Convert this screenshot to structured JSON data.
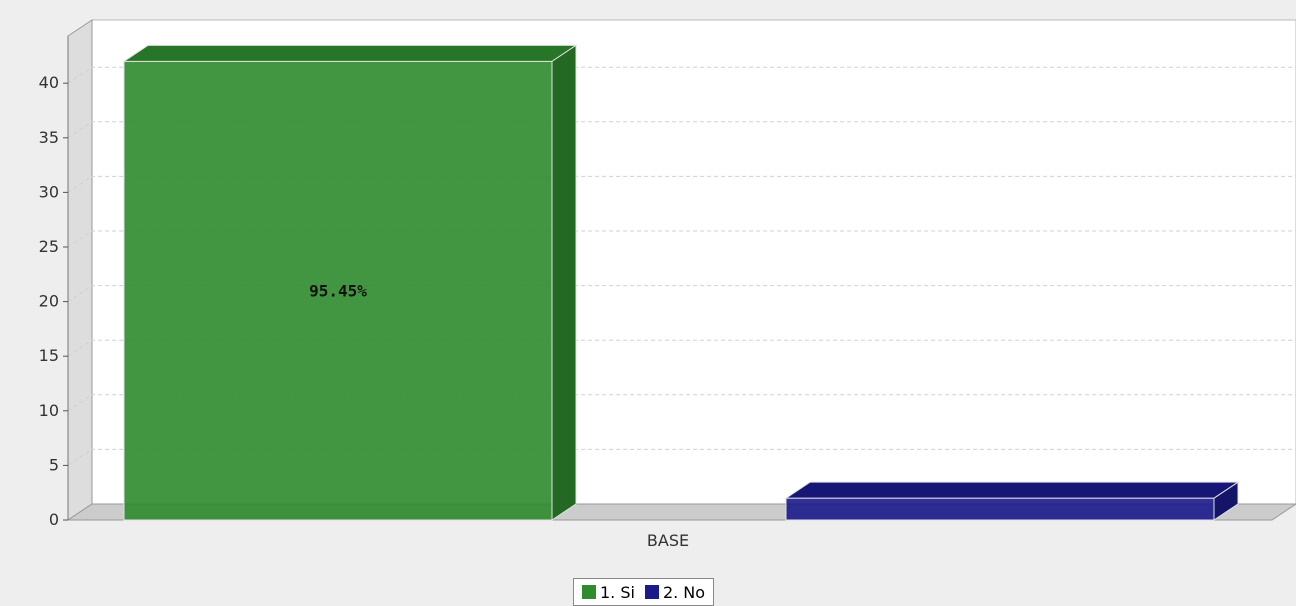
{
  "chart_data": {
    "type": "bar",
    "categories": [
      "BASE"
    ],
    "series": [
      {
        "name": "1. Si",
        "values": [
          42
        ],
        "color": "#2e8b2e",
        "label": "95.45%"
      },
      {
        "name": "2. No",
        "values": [
          2
        ],
        "color": "#1a1a8c",
        "label": ""
      }
    ],
    "xlabel": "",
    "ylabel": "",
    "ylim": [
      0,
      44
    ],
    "yticks": [
      0,
      5,
      10,
      15,
      20,
      25,
      30,
      35,
      40
    ],
    "grid": true,
    "legend_position": "bottom",
    "style": "3d"
  }
}
